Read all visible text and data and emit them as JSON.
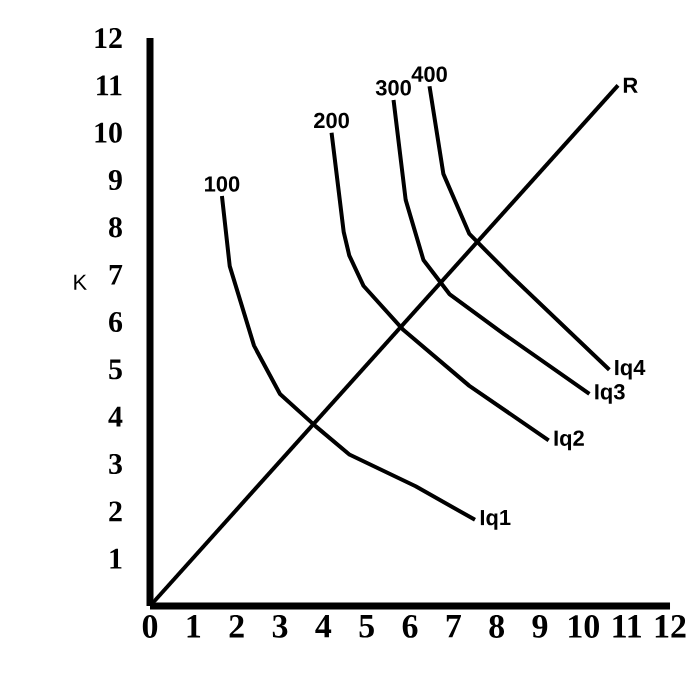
{
  "chart_data": {
    "type": "line",
    "ylabel": "K",
    "xlim": [
      0,
      12
    ],
    "ylim": [
      0,
      12
    ],
    "xticks": [
      0,
      1,
      2,
      3,
      4,
      5,
      6,
      7,
      8,
      9,
      10,
      11,
      12
    ],
    "yticks": [
      1,
      2,
      3,
      4,
      5,
      6,
      7,
      8,
      9,
      10,
      11,
      12
    ],
    "marker": "none",
    "line_style": "solid",
    "series": [
      {
        "name": "Iq1",
        "color": "#000000",
        "x": [
          1.66,
          1.84,
          2.4,
          3.0,
          3.82,
          4.6,
          6.13,
          7.5
        ],
        "values": [
          8.66,
          7.18,
          5.5,
          4.48,
          3.8,
          3.2,
          2.53,
          1.82
        ]
      },
      {
        "name": "Iq2",
        "color": "#000000",
        "x": [
          4.19,
          4.47,
          4.6,
          4.93,
          5.85,
          7.37,
          9.2
        ],
        "values": [
          10.0,
          7.9,
          7.4,
          6.76,
          5.83,
          4.65,
          3.5
        ]
      },
      {
        "name": "Iq3",
        "color": "#000000",
        "x": [
          5.62,
          5.9,
          6.31,
          6.91,
          8.16,
          10.14
        ],
        "values": [
          10.69,
          8.58,
          7.31,
          6.59,
          5.75,
          4.48
        ]
      },
      {
        "name": "Iq4",
        "color": "#000000",
        "x": [
          6.45,
          6.77,
          7.37,
          8.29,
          10.6
        ],
        "values": [
          10.98,
          9.13,
          7.86,
          7.01,
          4.99
        ]
      },
      {
        "name": "R",
        "color": "#000000",
        "x": [
          0,
          10.8
        ],
        "values": [
          0,
          11.0
        ]
      }
    ],
    "annotations": [
      {
        "text": "100",
        "x": 1.66,
        "y": 8.66
      },
      {
        "text": "200",
        "x": 4.19,
        "y": 10.0
      },
      {
        "text": "300",
        "x": 5.62,
        "y": 10.69
      },
      {
        "text": "400",
        "x": 6.45,
        "y": 10.98
      }
    ]
  }
}
